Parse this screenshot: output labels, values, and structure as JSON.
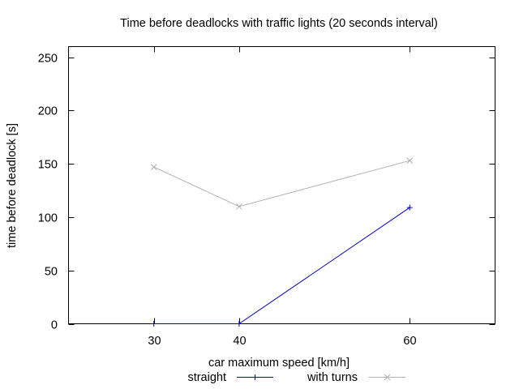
{
  "chart_data": {
    "type": "line",
    "title": "Time before deadlocks with traffic lights (20 seconds interval)",
    "xlabel": "car maximum speed [km/h]",
    "ylabel": "time before deadlock [s]",
    "xlim": [
      20,
      70
    ],
    "ylim": [
      0,
      260
    ],
    "xticks": [
      30,
      40,
      60
    ],
    "yticks": [
      0,
      50,
      100,
      150,
      200,
      250
    ],
    "grid": false,
    "legend_position": "bottom",
    "series": [
      {
        "name": "straight",
        "color": "#0000cc",
        "marker": "plus",
        "x": [
          30,
          40,
          60
        ],
        "y": [
          0,
          0,
          109
        ]
      },
      {
        "name": "with turns",
        "color": "#b0b0b0",
        "marker": "cross",
        "x": [
          30,
          40,
          60
        ],
        "y": [
          147,
          110,
          153
        ]
      }
    ]
  }
}
